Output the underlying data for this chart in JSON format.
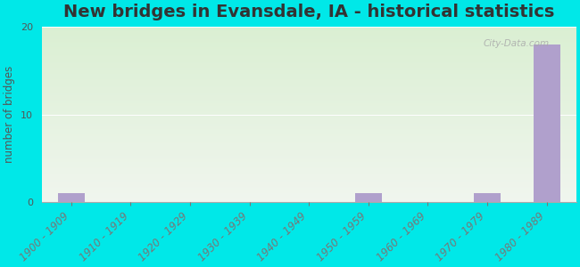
{
  "title": "New bridges in Evansdale, IA - historical statistics",
  "ylabel": "number of bridges",
  "categories": [
    "1900 - 1909",
    "1910 - 1919",
    "1920 - 1929",
    "1930 - 1939",
    "1940 - 1949",
    "1950 - 1959",
    "1960 - 1969",
    "1970 - 1979",
    "1980 - 1989"
  ],
  "values": [
    1,
    0,
    0,
    0,
    0,
    1,
    0,
    1,
    18
  ],
  "bar_color": "#b0a0cc",
  "ylim": [
    0,
    20
  ],
  "yticks": [
    0,
    10,
    20
  ],
  "background_outer": "#00e8e8",
  "grad_top": "#daefd2",
  "grad_bottom": "#f0f5ee",
  "title_fontsize": 14,
  "label_fontsize": 8.5,
  "tick_fontsize": 8,
  "watermark": "City-Data.com",
  "watermark_icon": "ⓘ"
}
